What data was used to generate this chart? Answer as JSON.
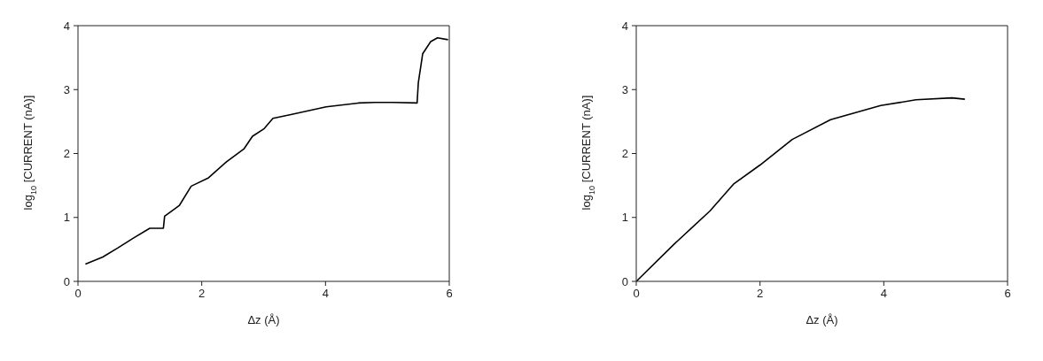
{
  "chart_data": [
    {
      "type": "line",
      "xlabel": "Δz (Å)",
      "ylabel": "log$_{10}$ [CURRENT (nA)]",
      "xlim": [
        0,
        6
      ],
      "ylim": [
        0,
        4
      ],
      "xticks": [
        0,
        2,
        4,
        6
      ],
      "yticks": [
        0,
        1,
        2,
        3,
        4
      ],
      "marker": "none",
      "line_style": "solid",
      "series": [
        {
          "color": "#000000",
          "x": [
            0.12,
            0.4,
            0.64,
            0.9,
            1.16,
            1.38,
            1.4,
            1.64,
            1.83,
            2.11,
            2.4,
            2.68,
            2.82,
            3.01,
            3.15,
            3.44,
            4.01,
            4.53,
            4.8,
            5.1,
            5.48,
            5.5,
            5.57,
            5.7,
            5.81,
            5.98
          ],
          "values": [
            0.27,
            0.38,
            0.52,
            0.68,
            0.83,
            0.83,
            1.02,
            1.19,
            1.49,
            1.62,
            1.87,
            2.07,
            2.27,
            2.39,
            2.55,
            2.61,
            2.73,
            2.79,
            2.8,
            2.8,
            2.79,
            3.11,
            3.56,
            3.75,
            3.81,
            3.78
          ]
        }
      ]
    },
    {
      "type": "line",
      "xlabel": "Δz (Å)",
      "ylabel": "log$_{10}$ [CURRENT (nA)]",
      "xlim": [
        0,
        6
      ],
      "ylim": [
        0,
        4
      ],
      "xticks": [
        0,
        2,
        4,
        6
      ],
      "yticks": [
        0,
        1,
        2,
        3,
        4
      ],
      "marker": "none",
      "line_style": "solid",
      "series": [
        {
          "color": "#000000",
          "x": [
            0,
            0.62,
            1.19,
            1.57,
            2.0,
            2.52,
            3.14,
            3.95,
            4.52,
            5.1,
            5.31
          ],
          "values": [
            0,
            0.59,
            1.1,
            1.52,
            1.82,
            2.22,
            2.53,
            2.75,
            2.84,
            2.87,
            2.85
          ]
        }
      ]
    }
  ]
}
